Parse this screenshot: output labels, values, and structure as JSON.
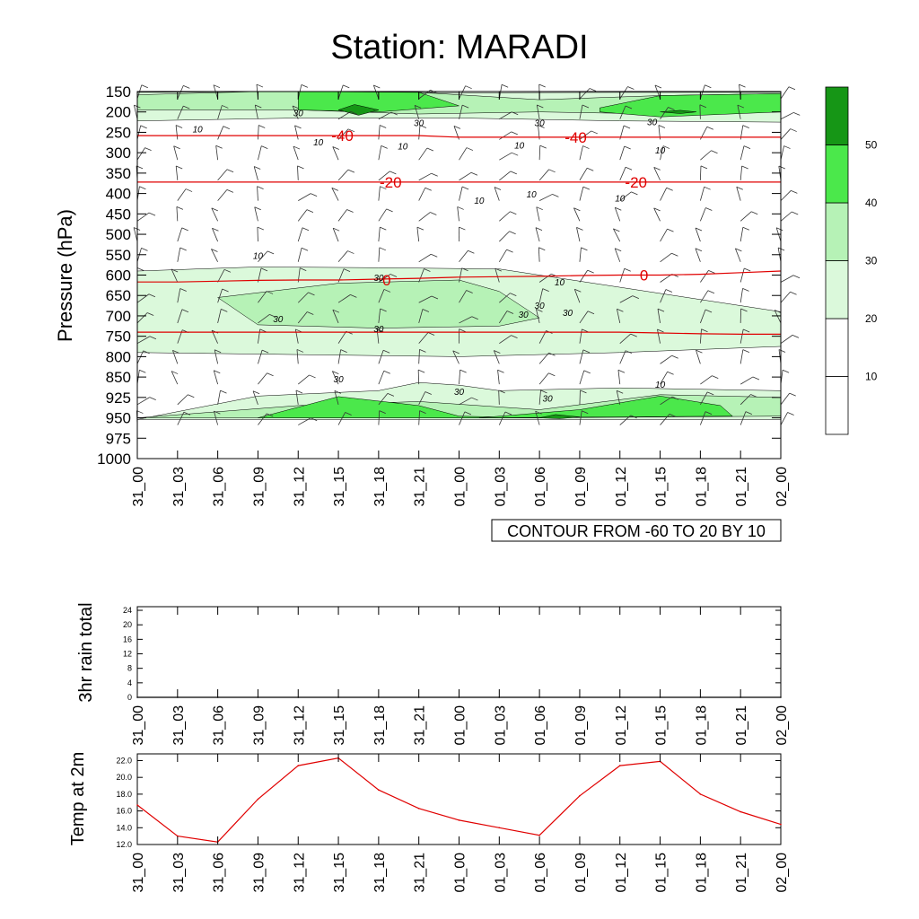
{
  "title": "Station: MARADI",
  "x_tick_labels": [
    "31_00",
    "31_03",
    "31_06",
    "31_09",
    "31_12",
    "31_15",
    "31_18",
    "31_21",
    "01_00",
    "01_03",
    "01_06",
    "01_09",
    "01_12",
    "01_15",
    "01_18",
    "01_21",
    "02_00"
  ],
  "chart_data": [
    {
      "type": "heatmap",
      "name": "cross-section",
      "title": "Station: MARADI",
      "ylabel": "Pressure (hPa)",
      "y_tick_labels": [
        "150",
        "200",
        "250",
        "300",
        "350",
        "400",
        "450",
        "500",
        "550",
        "600",
        "650",
        "700",
        "750",
        "800",
        "850",
        "925",
        "950",
        "975",
        "1000"
      ],
      "ylim": [
        1000,
        150
      ],
      "info_label": "CONTOUR FROM -60 TO 20 BY 10",
      "fill_variable": "wind speed",
      "fill_bands": [
        {
          "from": 20,
          "to": 30,
          "color": "#dbf9db"
        },
        {
          "from": 30,
          "to": 40,
          "color": "#b6f2b6"
        },
        {
          "from": 40,
          "to": 50,
          "color": "#4be84b"
        },
        {
          "from": 50,
          "to": 60,
          "color": "#169616"
        }
      ],
      "colorbar_labels": [
        "10",
        "20",
        "30",
        "40",
        "50"
      ],
      "colorbar_colors": [
        "#ffffff",
        "#ffffff",
        "#dbf9db",
        "#b6f2b6",
        "#4be84b",
        "#169616"
      ],
      "speed_contour_labels": [
        "30",
        "30",
        "30",
        "30",
        "10",
        "10",
        "10",
        "10",
        "10",
        "10",
        "10",
        "10",
        "10",
        "30",
        "30",
        "30",
        "30",
        "30",
        "30",
        "30",
        "30",
        "30",
        "10",
        "10"
      ],
      "temperature_contours": [
        {
          "value": -40,
          "color": "#e00000",
          "pressure_by_time": [
            258,
            258,
            258,
            258,
            258,
            258,
            258,
            258,
            262,
            262,
            262,
            262,
            262,
            262,
            262,
            262,
            262
          ]
        },
        {
          "value": -20,
          "color": "#e00000",
          "pressure_by_time": [
            372,
            372,
            372,
            372,
            372,
            372,
            372,
            372,
            372,
            372,
            372,
            372,
            372,
            372,
            372,
            372,
            372
          ]
        },
        {
          "value": 0,
          "color": "#e00000",
          "pressure_by_time": [
            617,
            617,
            615,
            613,
            612,
            612,
            610,
            608,
            605,
            604,
            603,
            601,
            600,
            600,
            598,
            594,
            590
          ]
        },
        {
          "value": 10,
          "color": "#e00000",
          "pressure_by_time": [
            740,
            740,
            740,
            740,
            740,
            740,
            740,
            740,
            740,
            740,
            740,
            740,
            740,
            742,
            744,
            745,
            745
          ]
        }
      ],
      "temperature_contour_labels": [
        "-40",
        "-40",
        "-20",
        "-20",
        "0",
        "0"
      ]
    },
    {
      "type": "line",
      "name": "3hr rain total",
      "ylabel": "3hr rain total",
      "y_tick_labels": [
        "0",
        "4",
        "8",
        "12",
        "16",
        "20",
        "24"
      ],
      "ylim": [
        0,
        25
      ],
      "series": [
        {
          "name": "3hr rain total",
          "values": [
            0,
            0,
            0,
            0,
            0,
            0,
            0,
            0,
            0,
            0,
            0,
            0,
            0,
            0,
            0,
            0,
            0
          ]
        }
      ]
    },
    {
      "type": "line",
      "name": "Temp at 2m",
      "ylabel": "Temp at 2m",
      "y_tick_labels": [
        "12.0",
        "14.0",
        "16.0",
        "18.0",
        "20.0",
        "22.0"
      ],
      "ylim": [
        12.0,
        22.8
      ],
      "series": [
        {
          "name": "Temp at 2m",
          "color": "#e00000",
          "values": [
            16.7,
            13.0,
            12.3,
            17.4,
            21.4,
            22.3,
            18.5,
            16.3,
            14.9,
            14.0,
            13.1,
            17.8,
            21.4,
            21.9,
            18.0,
            15.9,
            14.4
          ]
        }
      ]
    }
  ]
}
